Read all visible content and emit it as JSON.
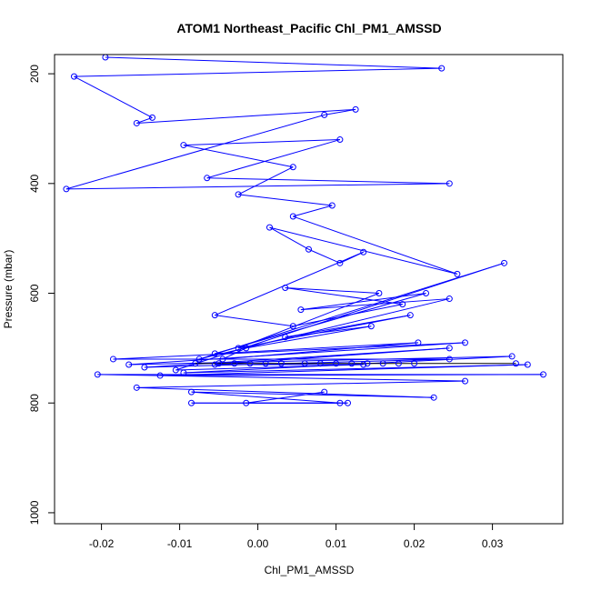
{
  "chart_data": {
    "type": "scatter",
    "title": "ATOM1 Northeast_Pacific Chl_PM1_AMSSD",
    "xlabel": "Chl_PM1_AMSSD",
    "ylabel": "Pressure (mbar)",
    "xlim": [
      -0.026,
      0.039
    ],
    "ylim": [
      1020,
      165
    ],
    "y_inverted": true,
    "x_ticks": [
      -0.02,
      -0.01,
      0.0,
      0.01,
      0.02,
      0.03
    ],
    "x_tick_labels": [
      "-0.02",
      "-0.01",
      "0.00",
      "0.01",
      "0.02",
      "0.03"
    ],
    "y_ticks": [
      200,
      400,
      600,
      800,
      1000
    ],
    "y_tick_labels": [
      "200",
      "400",
      "600",
      "800",
      "1000"
    ],
    "grid": false,
    "legend": "none",
    "series_color": "#0000ff",
    "connector_color": "#000000",
    "series": [
      {
        "x": [
          -0.0195,
          0.0235,
          -0.0235,
          -0.0135,
          -0.0155,
          0.0125,
          0.0085,
          -0.0245,
          0.0245,
          -0.0065,
          0.0105,
          -0.0095,
          0.0045,
          -0.0025,
          0.0095,
          0.0045,
          0.0255,
          0.0015,
          0.0065,
          0.0105,
          0.0135,
          -0.0055,
          0.0045,
          0.0185,
          0.0035,
          0.0155,
          -0.0025,
          0.0195,
          0.0035,
          0.0145,
          -0.0015,
          -0.0045,
          0.0205,
          -0.0055,
          0.0215,
          0.0055,
          0.0245,
          -0.0075,
          0.0315,
          -0.0105,
          0.0135,
          -0.0055,
          0.0245,
          -0.0145,
          0.0245,
          -0.0185,
          0.0265,
          -0.0165,
          0.0325,
          -0.0095,
          0.0345,
          -0.0125,
          0.0365,
          -0.0205,
          0.0265,
          -0.0155,
          0.0225,
          -0.0085,
          0.0105,
          -0.0085,
          0.0115,
          -0.0015,
          0.0085
        ],
        "y": [
          170,
          190,
          205,
          280,
          290,
          265,
          275,
          410,
          400,
          390,
          320,
          330,
          370,
          420,
          440,
          460,
          565,
          480,
          520,
          545,
          525,
          640,
          660,
          620,
          590,
          600,
          700,
          640,
          680,
          660,
          700,
          720,
          690,
          710,
          600,
          630,
          610,
          720,
          545,
          740,
          730,
          730,
          700,
          735,
          720,
          720,
          690,
          730,
          715,
          745,
          730,
          750,
          748,
          748,
          760,
          772,
          790,
          780,
          800,
          800,
          800,
          800,
          780
        ]
      },
      {
        "x": [
          -0.008,
          -0.005,
          -0.003,
          -0.001,
          0.001,
          0.003,
          0.006,
          0.008,
          0.01,
          0.012,
          0.014,
          0.016,
          0.018,
          0.02,
          0.033
        ],
        "y": [
          728,
          728,
          728,
          728,
          728,
          728,
          728,
          728,
          728,
          728,
          728,
          728,
          728,
          728,
          728
        ]
      }
    ]
  }
}
